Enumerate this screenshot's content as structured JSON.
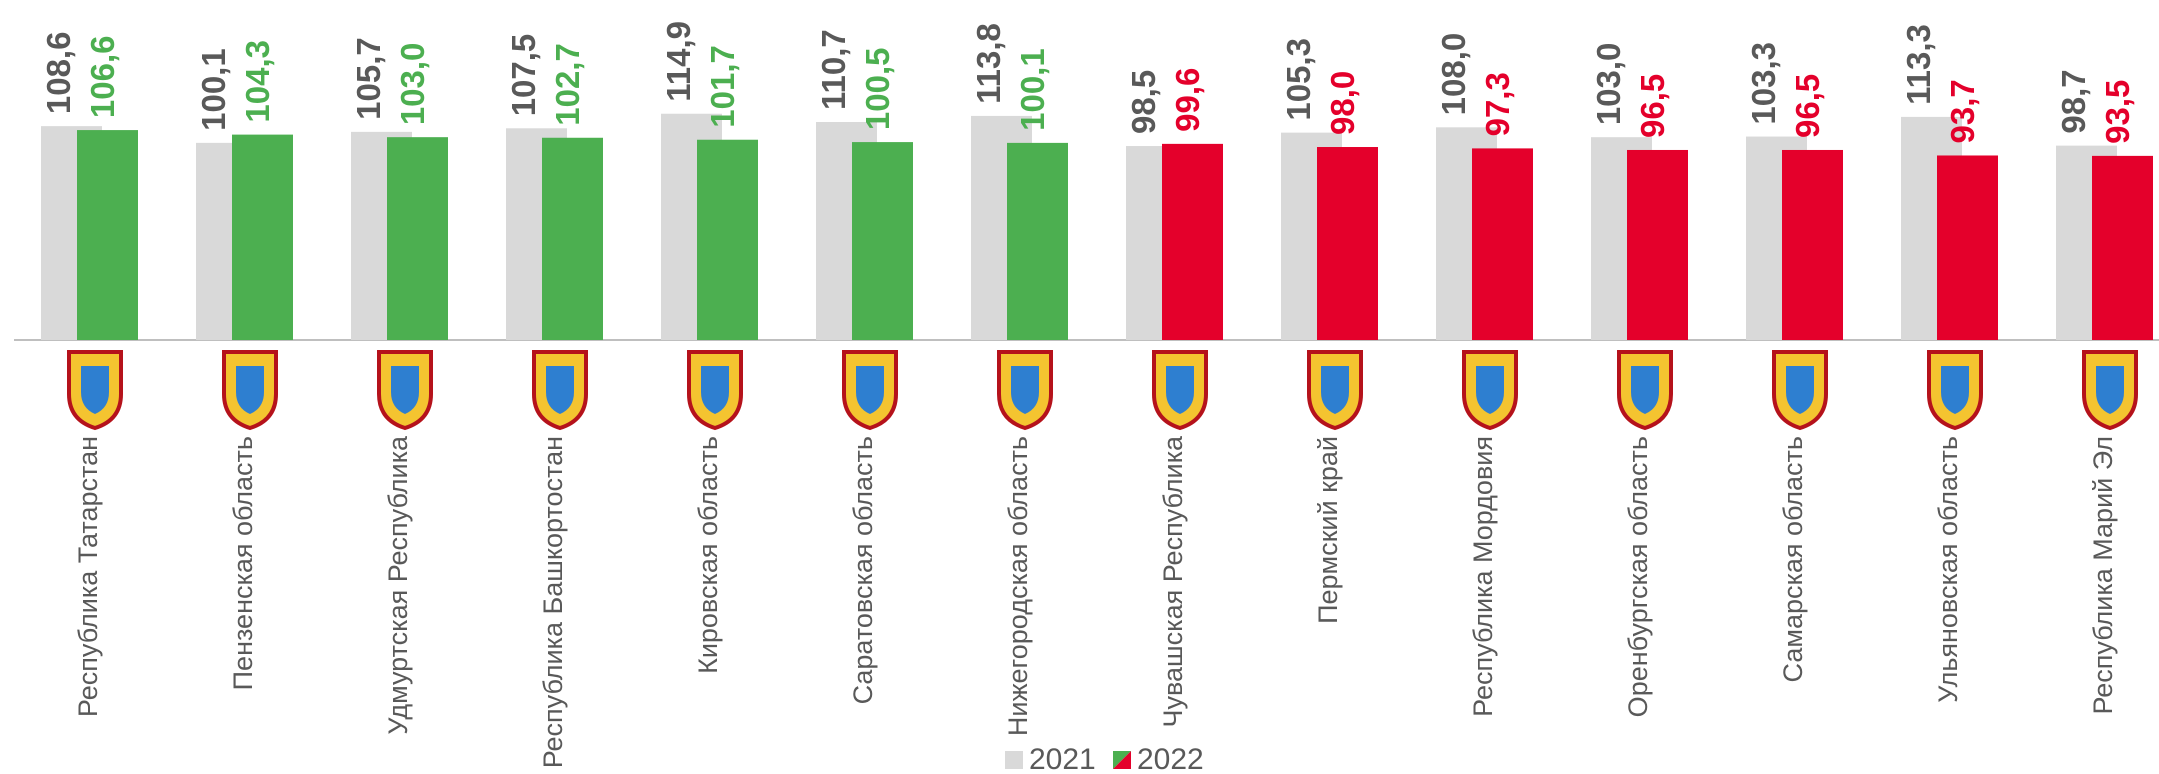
{
  "chart_data": {
    "type": "bar",
    "categories": [
      "Республика Татарстан",
      "Пензенская область",
      "Удмуртская Республика",
      "Республика Башкортостан",
      "Кировская область",
      "Саратовская область",
      "Нижегородская область",
      "Чувашская Республика",
      "Пермский край",
      "Республика Мордовия",
      "Оренбургская область",
      "Самарская область",
      "Ульяновская область",
      "Республика Марий Эл"
    ],
    "series": [
      {
        "name": "2021",
        "color": "#d9d9d9",
        "label_color": "#595959",
        "values": [
          108.6,
          100.1,
          105.7,
          107.5,
          114.9,
          110.7,
          113.8,
          98.5,
          105.3,
          108.0,
          103.0,
          103.3,
          113.3,
          98.7
        ],
        "value_labels": [
          "108,6",
          "100,1",
          "105,7",
          "107,5",
          "114,9",
          "110,7",
          "113,8",
          "98,5",
          "105,3",
          "108,0",
          "103,0",
          "103,3",
          "113,3",
          "98,7"
        ]
      },
      {
        "name": "2022",
        "colors": [
          "#4caf50",
          "#4caf50",
          "#4caf50",
          "#4caf50",
          "#4caf50",
          "#4caf50",
          "#4caf50",
          "#e4002b",
          "#e4002b",
          "#e4002b",
          "#e4002b",
          "#e4002b",
          "#e4002b",
          "#e4002b"
        ],
        "values": [
          106.6,
          104.3,
          103.0,
          102.7,
          101.7,
          100.5,
          100.1,
          99.6,
          98.0,
          97.3,
          96.5,
          96.5,
          93.7,
          93.5
        ],
        "value_labels": [
          "106,6",
          "104,3",
          "103,0",
          "102,7",
          "101,7",
          "100,5",
          "100,1",
          "99,6",
          "98,0",
          "97,3",
          "96,5",
          "96,5",
          "93,7",
          "93,5"
        ]
      }
    ],
    "ylim": [
      0,
      130
    ],
    "legend": "bottom"
  }
}
